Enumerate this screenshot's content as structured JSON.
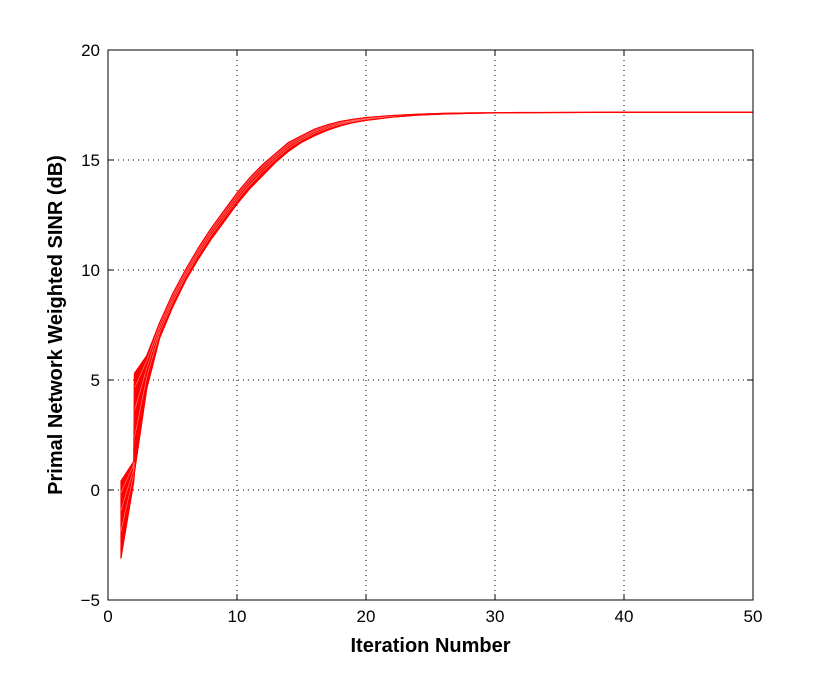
{
  "chart_data": {
    "type": "line",
    "title": "",
    "xlabel": "Iteration Number",
    "ylabel": "Primal Network Weighted SINR (dB)",
    "xlim": [
      0,
      50
    ],
    "ylim": [
      -5,
      20
    ],
    "xticks": [
      0,
      10,
      20,
      30,
      40,
      50
    ],
    "yticks": [
      -5,
      0,
      5,
      10,
      15,
      20
    ],
    "xtick_labels": [
      "0",
      "10",
      "20",
      "30",
      "40",
      "50"
    ],
    "ytick_labels": [
      "−5",
      "0",
      "5",
      "10",
      "15",
      "20"
    ],
    "grid": true,
    "grid_style": "dotted",
    "line_color": "#ff0000",
    "legend": "none",
    "description_note_series_count": 0,
    "series": [
      {
        "values_role": "band-upper",
        "x": [
          1,
          2,
          2.05,
          3,
          4,
          5,
          6,
          7,
          8,
          9,
          10,
          11,
          12,
          13,
          14,
          15,
          16,
          17,
          18,
          19,
          20,
          22,
          24,
          26,
          28,
          30,
          32,
          35,
          40,
          45,
          50
        ],
        "y": [
          0.4,
          1.3,
          5.3,
          6.1,
          7.6,
          8.9,
          10.0,
          11.0,
          11.9,
          12.7,
          13.5,
          14.2,
          14.8,
          15.3,
          15.8,
          16.1,
          16.4,
          16.6,
          16.75,
          16.85,
          16.93,
          17.02,
          17.08,
          17.12,
          17.14,
          17.15,
          17.16,
          17.16,
          17.17,
          17.17,
          17.17
        ]
      },
      {
        "values_role": "band-lower",
        "x": [
          1,
          2,
          2.05,
          3,
          4,
          5,
          6,
          7,
          8,
          9,
          10,
          11,
          12,
          13,
          14,
          15,
          16,
          17,
          18,
          19,
          20,
          22,
          24,
          26,
          28,
          30,
          32,
          35,
          40,
          45,
          50
        ],
        "y": [
          -3.1,
          0.4,
          0.8,
          4.6,
          6.9,
          8.3,
          9.5,
          10.5,
          11.4,
          12.2,
          13.0,
          13.7,
          14.3,
          14.9,
          15.4,
          15.8,
          16.1,
          16.35,
          16.55,
          16.7,
          16.8,
          16.95,
          17.04,
          17.09,
          17.12,
          17.14,
          17.15,
          17.16,
          17.17,
          17.17,
          17.17
        ]
      }
    ]
  }
}
